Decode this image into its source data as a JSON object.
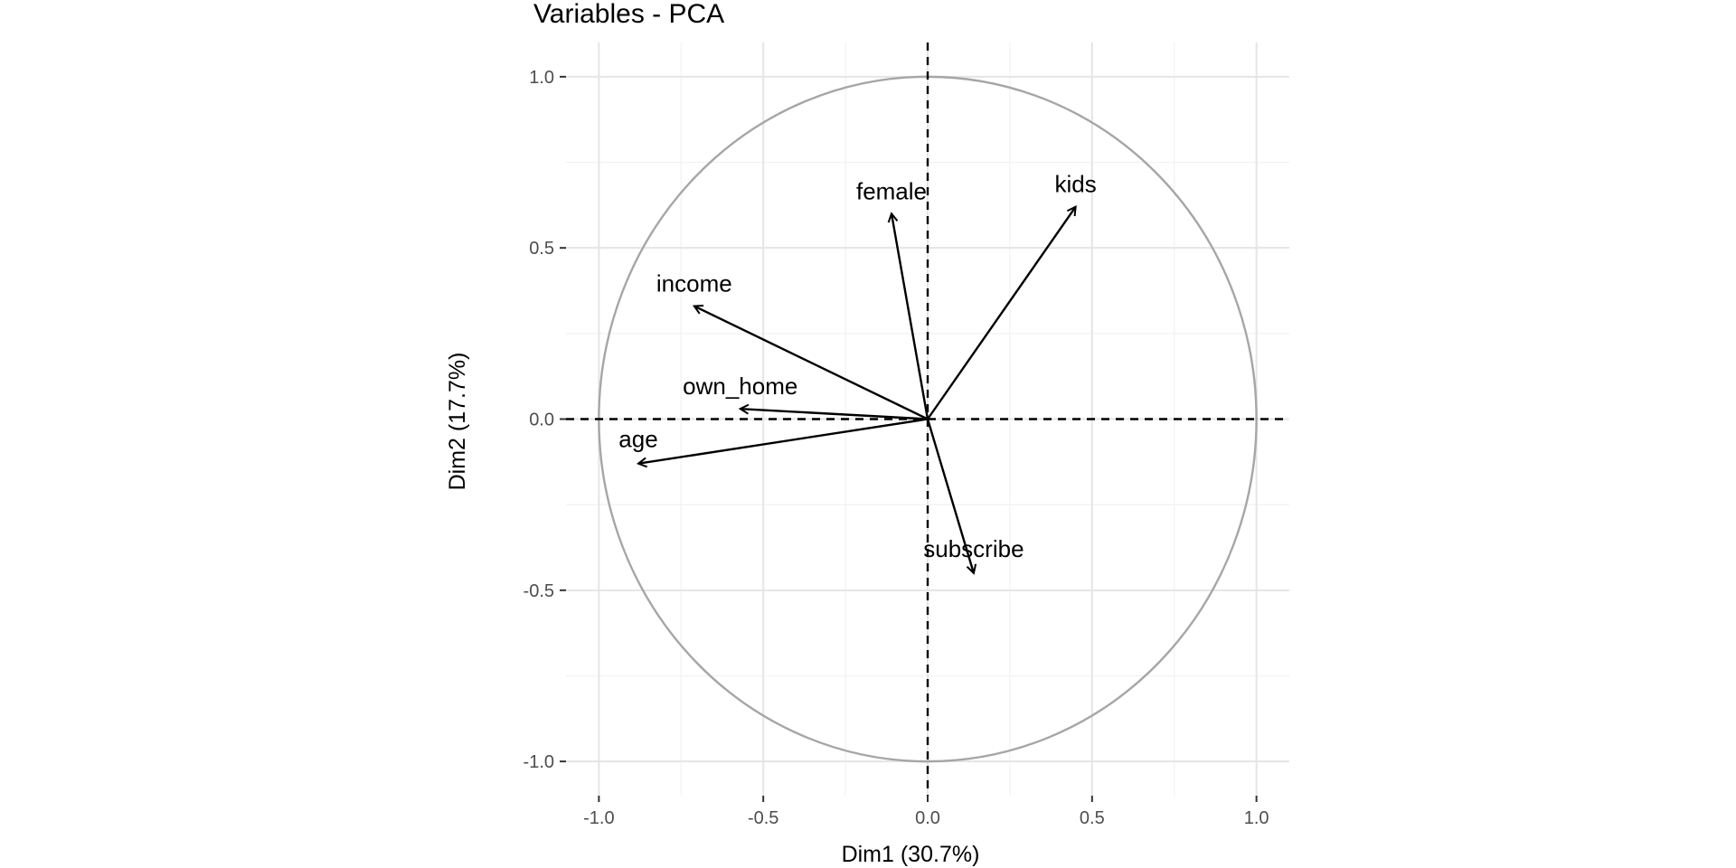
{
  "chart_data": {
    "type": "scatter",
    "subtype": "pca-variable-correlation-circle",
    "title": "Variables - PCA",
    "xlabel": "Dim1 (30.7%)",
    "ylabel": "Dim2 (17.7%)",
    "xlim": [
      -1.1,
      1.1
    ],
    "ylim": [
      -1.1,
      1.1
    ],
    "x_ticks": [
      -1.0,
      -0.5,
      0.0,
      0.5,
      1.0
    ],
    "y_ticks": [
      -1.0,
      -0.5,
      0.0,
      0.5,
      1.0
    ],
    "x_tick_labels": [
      "-1.0",
      "-0.5",
      "0.0",
      "0.5",
      "1.0"
    ],
    "y_tick_labels": [
      "-1.0",
      "-0.5",
      "0.0",
      "0.5",
      "1.0"
    ],
    "grid": true,
    "unit_circle": true,
    "variables": [
      {
        "name": "female",
        "x": -0.11,
        "y": 0.6
      },
      {
        "name": "kids",
        "x": 0.45,
        "y": 0.62
      },
      {
        "name": "income",
        "x": -0.71,
        "y": 0.33
      },
      {
        "name": "own_home",
        "x": -0.57,
        "y": 0.03
      },
      {
        "name": "age",
        "x": -0.88,
        "y": -0.13
      },
      {
        "name": "subscribe",
        "x": 0.14,
        "y": -0.45
      }
    ]
  },
  "colors": {
    "arrow": "#000000",
    "circle": "#a6a6a6",
    "grid_major": "#e5e5e5",
    "grid_minor": "#f2f2f2",
    "tick_text": "#4d4d4d"
  }
}
